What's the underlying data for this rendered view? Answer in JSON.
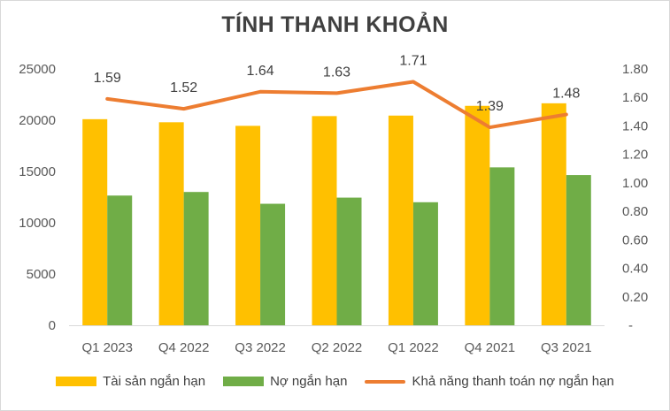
{
  "chart_data": {
    "type": "bar",
    "title": "TÍNH THANH KHOẢN",
    "categories": [
      "Q1 2023",
      "Q4 2022",
      "Q3 2022",
      "Q2 2022",
      "Q1 2022",
      "Q4 2021",
      "Q3 2021"
    ],
    "series": [
      {
        "name": "Tài sản ngắn hạn",
        "type": "bar",
        "axis": "left",
        "color": "#FFC000",
        "values": [
          20100,
          19800,
          19450,
          20400,
          20450,
          21400,
          21650
        ]
      },
      {
        "name": "Nợ ngắn hạn",
        "type": "bar",
        "axis": "left",
        "color": "#70AD47",
        "values": [
          12650,
          13000,
          11850,
          12450,
          12000,
          15400,
          14650
        ]
      },
      {
        "name": "Khả năng thanh toán nợ ngắn hạn",
        "type": "line",
        "axis": "right",
        "color": "#ED7D31",
        "values": [
          1.59,
          1.52,
          1.64,
          1.63,
          1.71,
          1.39,
          1.48
        ],
        "labels": [
          "1.59",
          "1.52",
          "1.64",
          "1.63",
          "1.71",
          "1.39",
          "1.48"
        ]
      }
    ],
    "y_left": {
      "ylim": [
        0,
        25000
      ],
      "ticks": [
        "0",
        "5000",
        "10000",
        "15000",
        "20000",
        "25000"
      ]
    },
    "y_right": {
      "ylim": [
        0,
        1.8
      ],
      "ticks": [
        "-",
        "0.20",
        "0.40",
        "0.60",
        "0.80",
        "1.00",
        "1.20",
        "1.40",
        "1.60",
        "1.80"
      ]
    },
    "legend_position": "bottom",
    "grid": false
  }
}
